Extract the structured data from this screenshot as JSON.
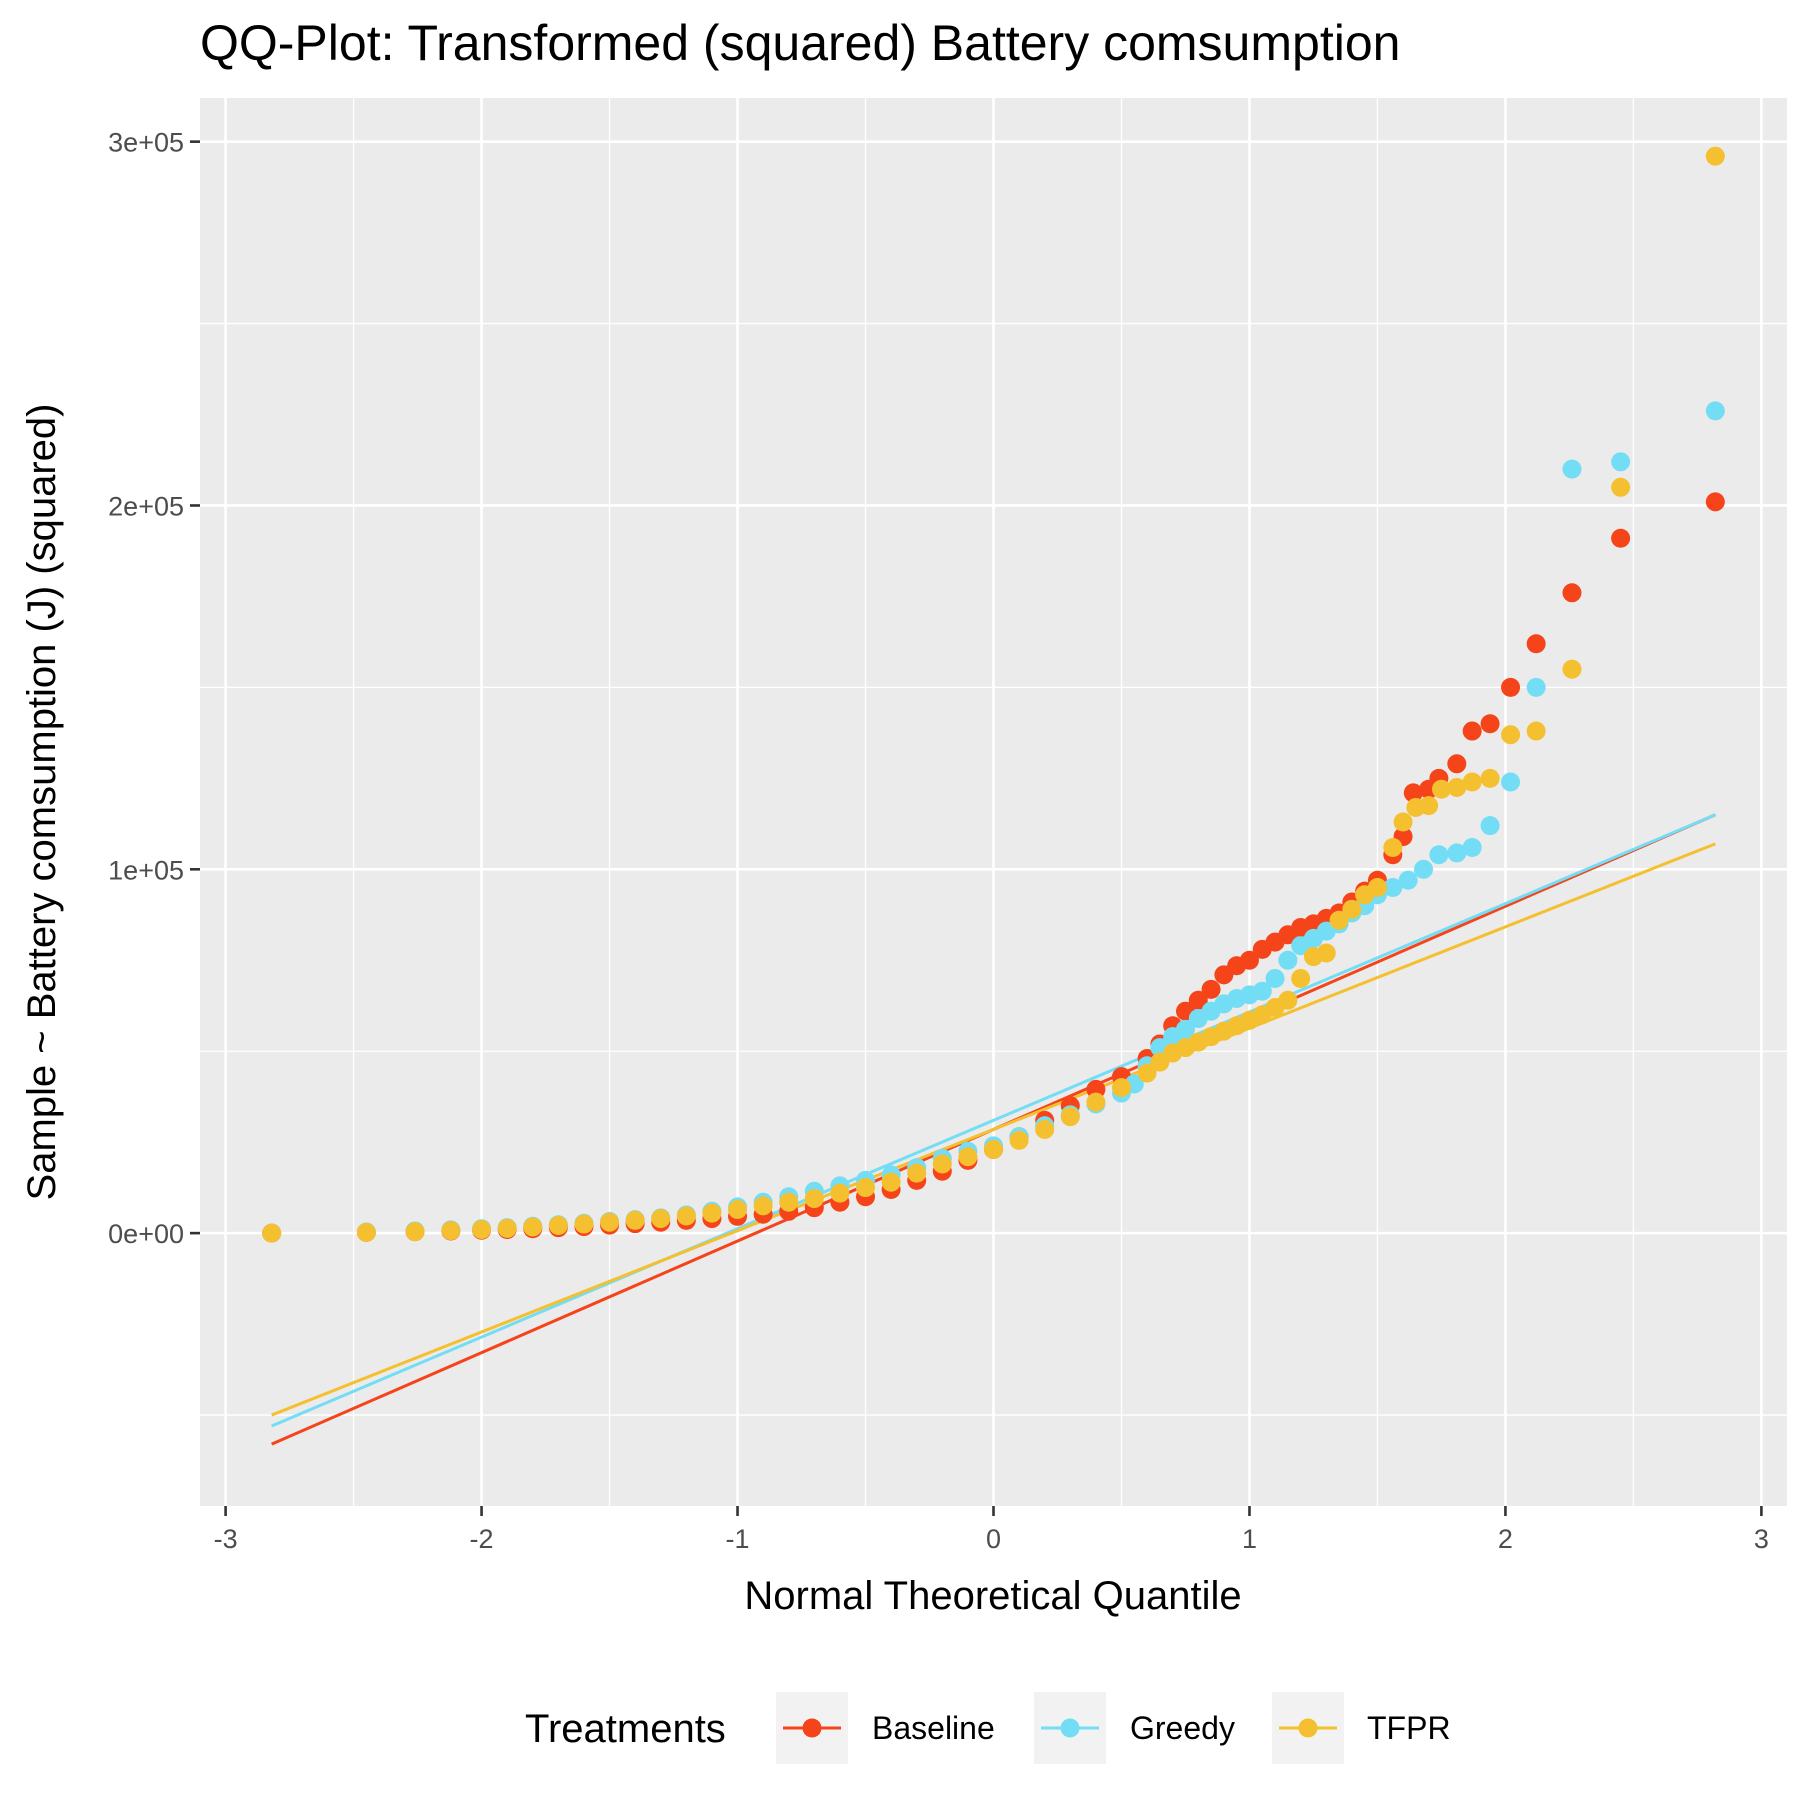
{
  "chart_data": {
    "type": "scatter",
    "title": "QQ-Plot: Transformed (squared) Battery comsumption",
    "xlabel": "Normal Theoretical Quantile",
    "ylabel": "Sample ~ Battery comsumption (J) (squared)",
    "xlim": [
      -3.1,
      3.1
    ],
    "ylim": [
      -75000,
      312000
    ],
    "x_ticks": [
      -3,
      -2,
      -1,
      0,
      1,
      2,
      3
    ],
    "x_tick_labels": [
      "-3",
      "-2",
      "-1",
      "0",
      "1",
      "2",
      "3"
    ],
    "y_ticks": [
      0,
      100000,
      200000,
      300000
    ],
    "y_tick_labels": [
      "0e+00",
      "1e+05",
      "2e+05",
      "3e+05"
    ],
    "grid": true,
    "legend": {
      "title": "Treatments",
      "position": "bottom"
    },
    "series": [
      {
        "name": "Baseline",
        "color": "#F5441A",
        "points": [
          [
            -2.82,
            0
          ],
          [
            -2.45,
            200
          ],
          [
            -2.26,
            400
          ],
          [
            -2.12,
            600
          ],
          [
            -2.0,
            800
          ],
          [
            -1.9,
            1000
          ],
          [
            -1.8,
            1200
          ],
          [
            -1.7,
            1500
          ],
          [
            -1.6,
            1800
          ],
          [
            -1.5,
            2200
          ],
          [
            -1.4,
            2600
          ],
          [
            -1.3,
            3000
          ],
          [
            -1.2,
            3500
          ],
          [
            -1.1,
            4000
          ],
          [
            -1.0,
            4600
          ],
          [
            -0.9,
            5200
          ],
          [
            -0.8,
            6000
          ],
          [
            -0.7,
            7000
          ],
          [
            -0.6,
            8500
          ],
          [
            -0.5,
            10000
          ],
          [
            -0.4,
            12000
          ],
          [
            -0.3,
            14500
          ],
          [
            -0.2,
            17000
          ],
          [
            -0.1,
            20000
          ],
          [
            0.0,
            23000
          ],
          [
            0.1,
            26500
          ],
          [
            0.2,
            31000
          ],
          [
            0.3,
            35000
          ],
          [
            0.4,
            39500
          ],
          [
            0.5,
            43000
          ],
          [
            0.6,
            48000
          ],
          [
            0.65,
            52000
          ],
          [
            0.7,
            57000
          ],
          [
            0.75,
            61000
          ],
          [
            0.8,
            64000
          ],
          [
            0.85,
            67000
          ],
          [
            0.9,
            71000
          ],
          [
            0.95,
            73500
          ],
          [
            1.0,
            75000
          ],
          [
            1.05,
            78000
          ],
          [
            1.1,
            80000
          ],
          [
            1.15,
            82000
          ],
          [
            1.2,
            84000
          ],
          [
            1.25,
            85000
          ],
          [
            1.3,
            86500
          ],
          [
            1.35,
            88000
          ],
          [
            1.4,
            91000
          ],
          [
            1.45,
            94000
          ],
          [
            1.5,
            97000
          ],
          [
            1.56,
            104000
          ],
          [
            1.6,
            109000
          ],
          [
            1.64,
            121000
          ],
          [
            1.7,
            122000
          ],
          [
            1.74,
            125000
          ],
          [
            1.81,
            129000
          ],
          [
            1.87,
            138000
          ],
          [
            1.94,
            140000
          ],
          [
            2.02,
            150000
          ],
          [
            2.12,
            162000
          ],
          [
            2.26,
            176000
          ],
          [
            2.45,
            191000
          ],
          [
            2.82,
            201000
          ]
        ],
        "line": {
          "x": [
            -2.82,
            2.82
          ],
          "y": [
            -58000,
            115000
          ]
        }
      },
      {
        "name": "Greedy",
        "color": "#73DDF5",
        "points": [
          [
            -2.82,
            0
          ],
          [
            -2.45,
            300
          ],
          [
            -2.26,
            600
          ],
          [
            -2.12,
            900
          ],
          [
            -2.0,
            1200
          ],
          [
            -1.9,
            1500
          ],
          [
            -1.8,
            1900
          ],
          [
            -1.7,
            2300
          ],
          [
            -1.6,
            2700
          ],
          [
            -1.5,
            3200
          ],
          [
            -1.4,
            3700
          ],
          [
            -1.3,
            4200
          ],
          [
            -1.2,
            5000
          ],
          [
            -1.1,
            6000
          ],
          [
            -1.0,
            7200
          ],
          [
            -0.9,
            8500
          ],
          [
            -0.8,
            10000
          ],
          [
            -0.7,
            11500
          ],
          [
            -0.6,
            13000
          ],
          [
            -0.5,
            14500
          ],
          [
            -0.4,
            16000
          ],
          [
            -0.3,
            18000
          ],
          [
            -0.2,
            20500
          ],
          [
            -0.1,
            22500
          ],
          [
            0.0,
            24000
          ],
          [
            0.1,
            26500
          ],
          [
            0.2,
            29500
          ],
          [
            0.3,
            32500
          ],
          [
            0.4,
            35500
          ],
          [
            0.5,
            38500
          ],
          [
            0.55,
            41000
          ],
          [
            0.6,
            46000
          ],
          [
            0.65,
            51000
          ],
          [
            0.7,
            54000
          ],
          [
            0.75,
            56000
          ],
          [
            0.8,
            59000
          ],
          [
            0.85,
            61000
          ],
          [
            0.9,
            63000
          ],
          [
            0.95,
            64500
          ],
          [
            1.0,
            65500
          ],
          [
            1.05,
            66500
          ],
          [
            1.1,
            70000
          ],
          [
            1.15,
            75000
          ],
          [
            1.2,
            79000
          ],
          [
            1.25,
            81000
          ],
          [
            1.3,
            83000
          ],
          [
            1.35,
            85000
          ],
          [
            1.4,
            88000
          ],
          [
            1.45,
            90000
          ],
          [
            1.5,
            93000
          ],
          [
            1.56,
            95000
          ],
          [
            1.62,
            97000
          ],
          [
            1.68,
            100000
          ],
          [
            1.74,
            104000
          ],
          [
            1.81,
            104500
          ],
          [
            1.87,
            106000
          ],
          [
            1.94,
            112000
          ],
          [
            2.02,
            124000
          ],
          [
            2.12,
            150000
          ],
          [
            2.26,
            210000
          ],
          [
            2.45,
            212000
          ],
          [
            2.82,
            226000
          ]
        ],
        "line": {
          "x": [
            -2.82,
            2.82
          ],
          "y": [
            -53000,
            115000
          ]
        }
      },
      {
        "name": "TFPR",
        "color": "#F5C02F",
        "points": [
          [
            -2.82,
            0
          ],
          [
            -2.45,
            200
          ],
          [
            -2.26,
            400
          ],
          [
            -2.12,
            700
          ],
          [
            -2.0,
            1000
          ],
          [
            -1.9,
            1300
          ],
          [
            -1.8,
            1700
          ],
          [
            -1.7,
            2100
          ],
          [
            -1.6,
            2500
          ],
          [
            -1.5,
            3000
          ],
          [
            -1.4,
            3500
          ],
          [
            -1.3,
            4000
          ],
          [
            -1.2,
            4700
          ],
          [
            -1.1,
            5500
          ],
          [
            -1.0,
            6500
          ],
          [
            -0.9,
            7500
          ],
          [
            -0.8,
            8500
          ],
          [
            -0.7,
            9500
          ],
          [
            -0.6,
            11000
          ],
          [
            -0.5,
            12500
          ],
          [
            -0.4,
            14000
          ],
          [
            -0.3,
            16500
          ],
          [
            -0.2,
            19000
          ],
          [
            -0.1,
            21000
          ],
          [
            0.0,
            23000
          ],
          [
            0.1,
            25500
          ],
          [
            0.2,
            28500
          ],
          [
            0.3,
            32000
          ],
          [
            0.4,
            36000
          ],
          [
            0.5,
            40000
          ],
          [
            0.6,
            44000
          ],
          [
            0.65,
            47000
          ],
          [
            0.7,
            49500
          ],
          [
            0.75,
            51000
          ],
          [
            0.8,
            52500
          ],
          [
            0.85,
            54000
          ],
          [
            0.9,
            55500
          ],
          [
            0.95,
            57000
          ],
          [
            1.0,
            58500
          ],
          [
            1.05,
            60000
          ],
          [
            1.1,
            62000
          ],
          [
            1.15,
            64000
          ],
          [
            1.2,
            70000
          ],
          [
            1.25,
            76000
          ],
          [
            1.3,
            77000
          ],
          [
            1.35,
            86000
          ],
          [
            1.4,
            89000
          ],
          [
            1.45,
            93000
          ],
          [
            1.5,
            95000
          ],
          [
            1.56,
            106000
          ],
          [
            1.6,
            113000
          ],
          [
            1.65,
            117000
          ],
          [
            1.7,
            117500
          ],
          [
            1.75,
            122000
          ],
          [
            1.81,
            122500
          ],
          [
            1.87,
            124000
          ],
          [
            1.94,
            125000
          ],
          [
            2.02,
            137000
          ],
          [
            2.12,
            138000
          ],
          [
            2.26,
            155000
          ],
          [
            2.45,
            205000
          ],
          [
            2.82,
            296000
          ]
        ],
        "line": {
          "x": [
            -2.82,
            2.82
          ],
          "y": [
            -50000,
            107000
          ]
        }
      }
    ]
  }
}
